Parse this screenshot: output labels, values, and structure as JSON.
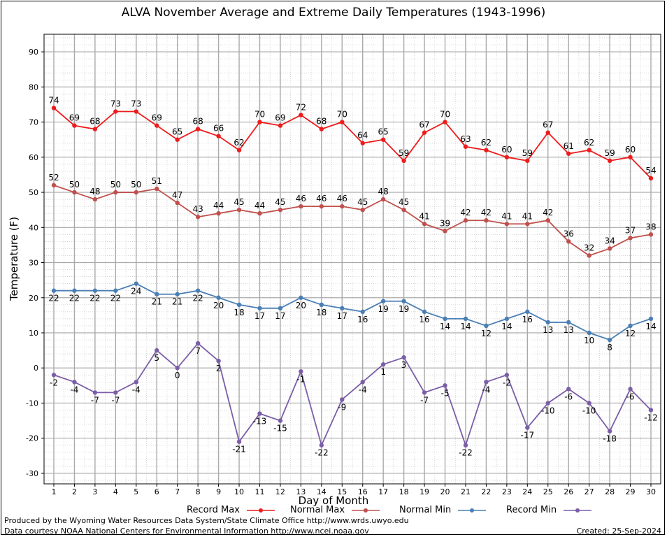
{
  "chart_data": {
    "type": "line",
    "title": "ALVA November Average and Extreme Daily Temperatures (1943-1996)",
    "xlabel": "Day of Month",
    "ylabel": "Temperature (F)",
    "x": [
      1,
      2,
      3,
      4,
      5,
      6,
      7,
      8,
      9,
      10,
      11,
      12,
      13,
      14,
      15,
      16,
      17,
      18,
      19,
      20,
      21,
      22,
      23,
      24,
      25,
      26,
      27,
      28,
      29,
      30
    ],
    "ylim": [
      -33,
      95
    ],
    "yticks": [
      -30,
      -20,
      -10,
      0,
      10,
      20,
      30,
      40,
      50,
      60,
      70,
      80,
      90
    ],
    "grid": true,
    "legend_position": "bottom",
    "series": [
      {
        "name": "Record Max",
        "color": "#ee1c1c",
        "label_pos": "above",
        "values": [
          74,
          69,
          68,
          73,
          73,
          69,
          65,
          68,
          66,
          62,
          70,
          69,
          72,
          68,
          70,
          64,
          65,
          59,
          67,
          70,
          63,
          62,
          60,
          59,
          67,
          61,
          62,
          59,
          60,
          54
        ]
      },
      {
        "name": "Normal Max",
        "color": "#c0504d",
        "label_pos": "above",
        "values": [
          52,
          50,
          48,
          50,
          50,
          51,
          47,
          43,
          44,
          45,
          44,
          45,
          46,
          46,
          46,
          45,
          48,
          45,
          41,
          39,
          42,
          42,
          41,
          41,
          42,
          36,
          32,
          34,
          37,
          38
        ]
      },
      {
        "name": "Normal Min",
        "color": "#4a7fb5",
        "label_pos": "below",
        "values": [
          22,
          22,
          22,
          22,
          24,
          21,
          21,
          22,
          20,
          18,
          17,
          17,
          20,
          18,
          17,
          16,
          19,
          19,
          16,
          14,
          14,
          12,
          14,
          16,
          13,
          13,
          10,
          8,
          12,
          14
        ]
      },
      {
        "name": "Record Min",
        "color": "#7b5ea7",
        "label_pos": "below",
        "values": [
          -2,
          -4,
          -7,
          -7,
          -4,
          5,
          0,
          7,
          2,
          -21,
          -13,
          -15,
          -1,
          -22,
          -9,
          -4,
          1,
          3,
          -7,
          -5,
          -22,
          -4,
          -2,
          -17,
          -10,
          -6,
          -10,
          -18,
          -6,
          -12
        ]
      }
    ]
  },
  "footer": {
    "produced_by": "Produced by the Wyoming Water Resources Data System/State Climate Office http://www.wrds.uwyo.edu",
    "courtesy": "Data courtesy NOAA National Centers for Environmental Information http://www.ncei.noaa.gov",
    "created": "Created:  25-Sep-2024"
  }
}
